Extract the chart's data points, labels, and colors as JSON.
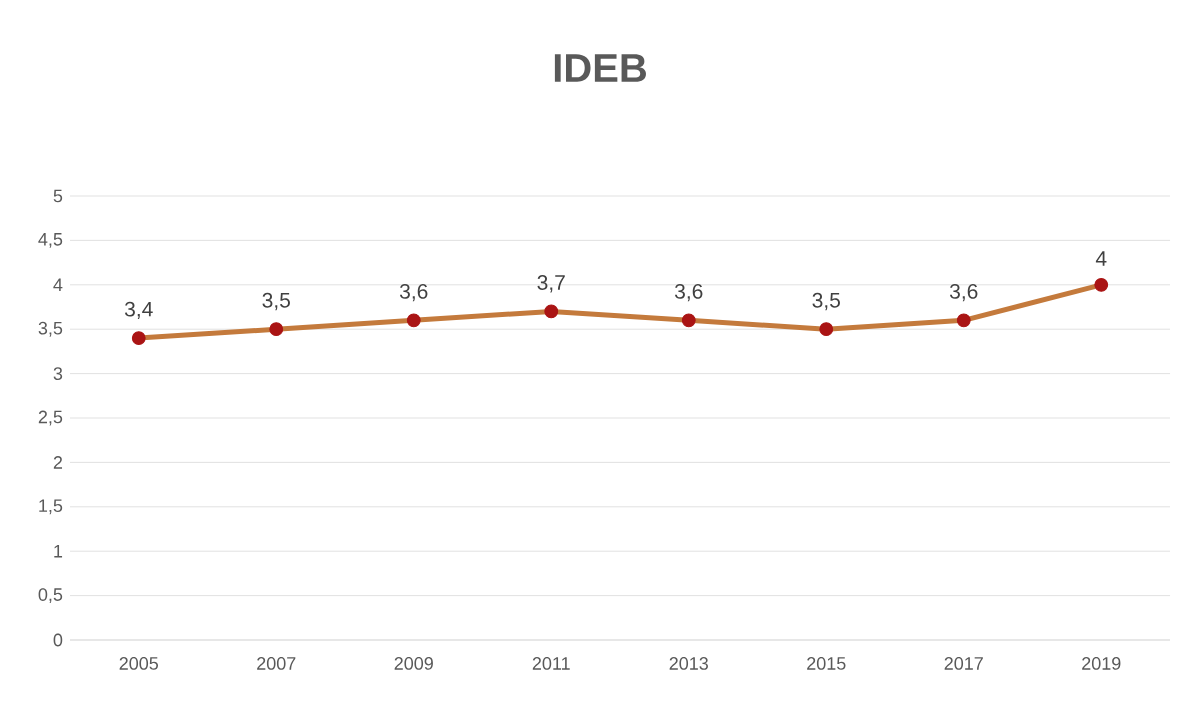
{
  "chart_data": {
    "type": "line",
    "title": "IDEB",
    "categories": [
      "2005",
      "2007",
      "2009",
      "2011",
      "2013",
      "2015",
      "2017",
      "2019"
    ],
    "series": [
      {
        "color": "#c47a3c",
        "values": [
          3.4,
          3.5,
          3.6,
          3.7,
          3.6,
          3.5,
          3.6,
          4
        ],
        "value_labels": [
          "3,4",
          "3,5",
          "3,6",
          "3,7",
          "3,6",
          "3,5",
          "3,6",
          "4"
        ]
      }
    ],
    "ylim": [
      0,
      5
    ],
    "yticks": [
      0,
      {
        "value": 0.5,
        "label": "0,5"
      },
      1,
      {
        "value": 1.5,
        "label": "1,5"
      },
      2,
      {
        "value": 2.5,
        "label": "2,5"
      },
      3,
      {
        "value": 3.5,
        "label": "3,5"
      },
      4,
      {
        "value": 4.5,
        "label": "4,5"
      },
      5
    ],
    "grid": "y",
    "marker": "circle",
    "line_style": "solid"
  }
}
